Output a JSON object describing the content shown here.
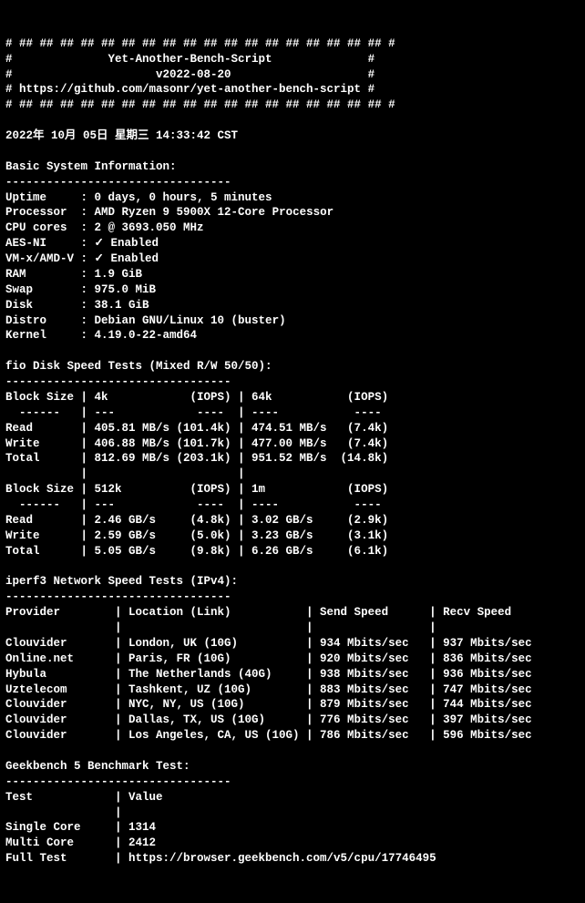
{
  "header": {
    "border": "# ## ## ## ## ## ## ## ## ## ## ## ## ## ## ## ## ## ## #",
    "title_line": "#              Yet-Another-Bench-Script              #",
    "version_line": "#                     v2022-08-20                    #",
    "url_line": "# https://github.com/masonr/yet-another-bench-script #"
  },
  "timestamp": "2022年 10月 05日 星期三 14:33:42 CST",
  "sysinfo": {
    "title": "Basic System Information:",
    "sep": "---------------------------------",
    "uptime_label": "Uptime     :",
    "uptime": "0 days, 0 hours, 5 minutes",
    "processor_label": "Processor  :",
    "processor": "AMD Ryzen 9 5900X 12-Core Processor",
    "cores_label": "CPU cores  :",
    "cores": "2 @ 3693.050 MHz",
    "aesni_label": "AES-NI     :",
    "aesni": "✓ Enabled",
    "vmx_label": "VM-x/AMD-V :",
    "vmx": "✓ Enabled",
    "ram_label": "RAM        :",
    "ram": "1.9 GiB",
    "swap_label": "Swap       :",
    "swap": "975.0 MiB",
    "disk_label": "Disk       :",
    "disk": "38.1 GiB",
    "distro_label": "Distro     :",
    "distro": "Debian GNU/Linux 10 (buster)",
    "kernel_label": "Kernel     :",
    "kernel": "4.19.0-22-amd64"
  },
  "fio": {
    "title": "fio Disk Speed Tests (Mixed R/W 50/50):",
    "sep": "---------------------------------",
    "hdr1": "Block Size | 4k            (IOPS) | 64k           (IOPS)",
    "hdrsep": "  ------   | ---            ----  | ----           ---- ",
    "r1_read": "Read       | 405.81 MB/s (101.4k) | 474.51 MB/s   (7.4k)",
    "r1_write": "Write      | 406.88 MB/s (101.7k) | 477.00 MB/s   (7.4k)",
    "r1_total": "Total      | 812.69 MB/s (203.1k) | 951.52 MB/s  (14.8k)",
    "blank": "           |                      |                     ",
    "hdr2": "Block Size | 512k          (IOPS) | 1m            (IOPS)",
    "hdrsep2": "  ------   | ---            ----  | ----           ---- ",
    "r2_read": "Read       | 2.46 GB/s     (4.8k) | 3.02 GB/s     (2.9k)",
    "r2_write": "Write      | 2.59 GB/s     (5.0k) | 3.23 GB/s     (3.1k)",
    "r2_total": "Total      | 5.05 GB/s     (9.8k) | 6.26 GB/s     (6.1k)"
  },
  "iperf": {
    "title": "iperf3 Network Speed Tests (IPv4):",
    "sep": "---------------------------------",
    "hdr": "Provider        | Location (Link)           | Send Speed      | Recv Speed     ",
    "hsep": "                |                           |                 |                ",
    "r1": "Clouvider       | London, UK (10G)          | 934 Mbits/sec   | 937 Mbits/sec  ",
    "r2": "Online.net      | Paris, FR (10G)           | 920 Mbits/sec   | 836 Mbits/sec  ",
    "r3": "Hybula          | The Netherlands (40G)     | 938 Mbits/sec   | 936 Mbits/sec  ",
    "r4": "Uztelecom       | Tashkent, UZ (10G)        | 883 Mbits/sec   | 747 Mbits/sec  ",
    "r5": "Clouvider       | NYC, NY, US (10G)         | 879 Mbits/sec   | 744 Mbits/sec  ",
    "r6": "Clouvider       | Dallas, TX, US (10G)      | 776 Mbits/sec   | 397 Mbits/sec  ",
    "r7": "Clouvider       | Los Angeles, CA, US (10G) | 786 Mbits/sec   | 596 Mbits/sec  "
  },
  "geekbench": {
    "title": "Geekbench 5 Benchmark Test:",
    "sep": "---------------------------------",
    "hdr": "Test            | Value                                                         ",
    "hsep": "                |                                                               ",
    "sc": "Single Core     | 1314                                                          ",
    "mc": "Multi Core      | 2412                                                          ",
    "ft": "Full Test       | https://browser.geekbench.com/v5/cpu/17746495"
  }
}
